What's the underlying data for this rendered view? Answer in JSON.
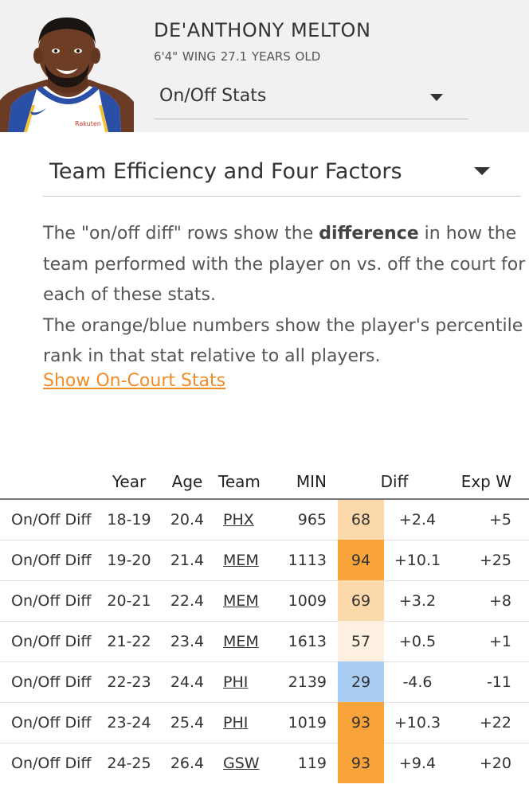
{
  "player": {
    "name": "DE'ANTHONY MELTON",
    "height_position": "6'4\" WING",
    "age_label": "27.1 YEARS OLD",
    "jersey_sponsor": "Rakuten"
  },
  "view_dropdown": {
    "selected": "On/Off Stats"
  },
  "section_dropdown": {
    "selected": "Team Efficiency and Four Factors"
  },
  "description": {
    "line1_pre": "The \"on/off diff\" rows show the ",
    "line1_bold": "difference",
    "line1_post": " in how the",
    "line2": "team performed with the player on vs. off the court for",
    "line3": "each of these stats.",
    "line4": "The orange/blue numbers show the player's percentile",
    "line5": "rank in that stat relative to all players.",
    "link": "Show On-Court Stats"
  },
  "table": {
    "headers": [
      "",
      "Year",
      "Age",
      "Team",
      "MIN",
      "Diff",
      "Exp W"
    ],
    "rows": [
      {
        "label": "On/Off Diff",
        "year": "18-19",
        "age": "20.4",
        "team": "PHX",
        "min": "965",
        "pct": 68,
        "diff": "+2.4",
        "exp_w": "+5"
      },
      {
        "label": "On/Off Diff",
        "year": "19-20",
        "age": "21.4",
        "team": "MEM",
        "min": "1113",
        "pct": 94,
        "diff": "+10.1",
        "exp_w": "+25"
      },
      {
        "label": "On/Off Diff",
        "year": "20-21",
        "age": "22.4",
        "team": "MEM",
        "min": "1009",
        "pct": 69,
        "diff": "+3.2",
        "exp_w": "+8"
      },
      {
        "label": "On/Off Diff",
        "year": "21-22",
        "age": "23.4",
        "team": "MEM",
        "min": "1613",
        "pct": 57,
        "diff": "+0.5",
        "exp_w": "+1"
      },
      {
        "label": "On/Off Diff",
        "year": "22-23",
        "age": "24.4",
        "team": "PHI",
        "min": "2139",
        "pct": 29,
        "diff": "-4.6",
        "exp_w": "-11"
      },
      {
        "label": "On/Off Diff",
        "year": "23-24",
        "age": "25.4",
        "team": "PHI",
        "min": "1019",
        "pct": 93,
        "diff": "+10.3",
        "exp_w": "+22"
      },
      {
        "label": "On/Off Diff",
        "year": "24-25",
        "age": "26.4",
        "team": "GSW",
        "min": "119",
        "pct": 93,
        "diff": "+9.4",
        "exp_w": "+20"
      }
    ]
  },
  "colors": {
    "header_bg": "#f1f1f1",
    "link_orange": "#f28c28",
    "pct_high": "#f9a43a",
    "pct_mid": "#fcd9ab",
    "pct_low": "#fdf0e0",
    "pct_blue": "#a9cdf3",
    "jersey_blue": "#2a4fa6",
    "jersey_gold": "#f6c235"
  }
}
